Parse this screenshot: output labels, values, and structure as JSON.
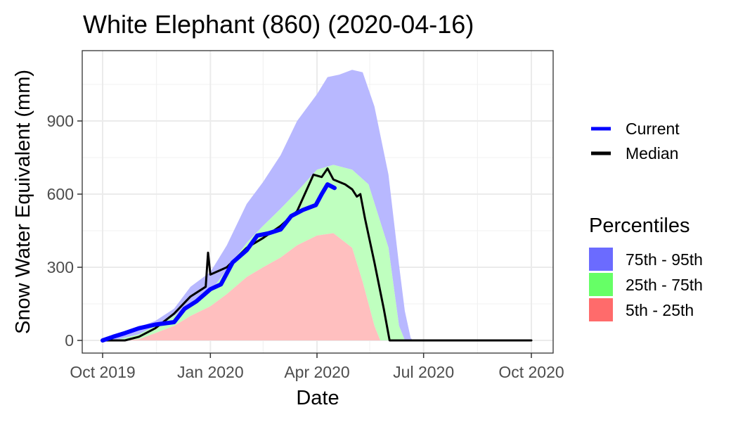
{
  "chart_data": {
    "type": "area",
    "title": "White Elephant (860) (2020-04-16)",
    "xlabel": "Date",
    "ylabel": "Snow Water Equivalent (mm)",
    "xlim": [
      "2019-10-01",
      "2020-10-01"
    ],
    "ylim": [
      -40,
      1180
    ],
    "x_ticks": [
      {
        "date": "2019-10-01",
        "label": "Oct 2019"
      },
      {
        "date": "2020-01-01",
        "label": "Jan 2020"
      },
      {
        "date": "2020-04-01",
        "label": "Apr 2020"
      },
      {
        "date": "2020-07-01",
        "label": "Jul 2020"
      },
      {
        "date": "2020-10-01",
        "label": "Oct 2020"
      }
    ],
    "y_ticks": [
      0,
      300,
      600,
      900
    ],
    "grid": true,
    "legend_position": "right",
    "lines_legend": [
      {
        "name": "Current",
        "color": "#0000ff"
      },
      {
        "name": "Median",
        "color": "#000000"
      }
    ],
    "percentile_legend_title": "Percentiles",
    "bands": [
      {
        "name": "75th - 95th",
        "color": "#6b6bff",
        "fill": "#b8b8ff",
        "upper": [
          [
            "2019-10-01",
            0
          ],
          [
            "2019-10-15",
            25
          ],
          [
            "2019-11-01",
            55
          ],
          [
            "2019-11-15",
            80
          ],
          [
            "2019-12-01",
            130
          ],
          [
            "2019-12-15",
            220
          ],
          [
            "2020-01-01",
            280
          ],
          [
            "2020-01-15",
            390
          ],
          [
            "2020-02-01",
            560
          ],
          [
            "2020-02-15",
            650
          ],
          [
            "2020-03-01",
            760
          ],
          [
            "2020-03-15",
            900
          ],
          [
            "2020-04-01",
            1010
          ],
          [
            "2020-04-10",
            1080
          ],
          [
            "2020-04-20",
            1090
          ],
          [
            "2020-05-01",
            1110
          ],
          [
            "2020-05-10",
            1100
          ],
          [
            "2020-05-20",
            960
          ],
          [
            "2020-06-01",
            680
          ],
          [
            "2020-06-10",
            310
          ],
          [
            "2020-06-15",
            120
          ],
          [
            "2020-06-20",
            10
          ],
          [
            "2020-06-22",
            0
          ]
        ],
        "lower": [
          [
            "2019-10-01",
            0
          ],
          [
            "2019-10-15",
            5
          ],
          [
            "2019-11-01",
            25
          ],
          [
            "2019-11-15",
            60
          ],
          [
            "2019-12-01",
            100
          ],
          [
            "2019-12-15",
            150
          ],
          [
            "2020-01-01",
            200
          ],
          [
            "2020-01-15",
            290
          ],
          [
            "2020-02-01",
            400
          ],
          [
            "2020-02-15",
            470
          ],
          [
            "2020-03-01",
            540
          ],
          [
            "2020-03-15",
            610
          ],
          [
            "2020-04-01",
            700
          ],
          [
            "2020-04-15",
            720
          ],
          [
            "2020-05-01",
            700
          ],
          [
            "2020-05-15",
            640
          ],
          [
            "2020-06-01",
            380
          ],
          [
            "2020-06-10",
            60
          ],
          [
            "2020-06-15",
            0
          ],
          [
            "2020-06-22",
            0
          ]
        ]
      },
      {
        "name": "25th - 75th",
        "color": "#66ff66",
        "fill": "#bfffbf",
        "upper": [
          [
            "2019-10-01",
            0
          ],
          [
            "2019-10-15",
            5
          ],
          [
            "2019-11-01",
            25
          ],
          [
            "2019-11-15",
            60
          ],
          [
            "2019-12-01",
            100
          ],
          [
            "2019-12-15",
            150
          ],
          [
            "2020-01-01",
            200
          ],
          [
            "2020-01-15",
            290
          ],
          [
            "2020-02-01",
            400
          ],
          [
            "2020-02-15",
            470
          ],
          [
            "2020-03-01",
            540
          ],
          [
            "2020-03-15",
            610
          ],
          [
            "2020-04-01",
            700
          ],
          [
            "2020-04-15",
            720
          ],
          [
            "2020-05-01",
            700
          ],
          [
            "2020-05-15",
            640
          ],
          [
            "2020-06-01",
            380
          ],
          [
            "2020-06-10",
            60
          ],
          [
            "2020-06-15",
            0
          ]
        ],
        "lower": [
          [
            "2019-10-01",
            0
          ],
          [
            "2019-10-20",
            0
          ],
          [
            "2019-11-01",
            5
          ],
          [
            "2019-11-15",
            30
          ],
          [
            "2019-12-01",
            60
          ],
          [
            "2019-12-15",
            100
          ],
          [
            "2020-01-01",
            140
          ],
          [
            "2020-01-15",
            190
          ],
          [
            "2020-02-01",
            260
          ],
          [
            "2020-02-15",
            300
          ],
          [
            "2020-03-01",
            340
          ],
          [
            "2020-03-15",
            390
          ],
          [
            "2020-04-01",
            430
          ],
          [
            "2020-04-15",
            440
          ],
          [
            "2020-05-01",
            380
          ],
          [
            "2020-05-10",
            240
          ],
          [
            "2020-05-20",
            60
          ],
          [
            "2020-05-25",
            0
          ],
          [
            "2020-06-15",
            0
          ]
        ]
      },
      {
        "name": "5th - 25th",
        "color": "#ff6b6b",
        "fill": "#ffbfbf",
        "upper": [
          [
            "2019-10-01",
            0
          ],
          [
            "2019-10-20",
            0
          ],
          [
            "2019-11-01",
            5
          ],
          [
            "2019-11-15",
            30
          ],
          [
            "2019-12-01",
            60
          ],
          [
            "2019-12-15",
            100
          ],
          [
            "2020-01-01",
            140
          ],
          [
            "2020-01-15",
            190
          ],
          [
            "2020-02-01",
            260
          ],
          [
            "2020-02-15",
            300
          ],
          [
            "2020-03-01",
            340
          ],
          [
            "2020-03-15",
            390
          ],
          [
            "2020-04-01",
            430
          ],
          [
            "2020-04-15",
            440
          ],
          [
            "2020-05-01",
            380
          ],
          [
            "2020-05-10",
            240
          ],
          [
            "2020-05-20",
            60
          ],
          [
            "2020-05-25",
            0
          ]
        ],
        "lower": [
          [
            "2019-10-01",
            0
          ],
          [
            "2020-05-25",
            0
          ]
        ]
      }
    ],
    "series": [
      {
        "name": "Median",
        "color": "#000000",
        "points": [
          [
            "2019-10-01",
            0
          ],
          [
            "2019-10-10",
            0
          ],
          [
            "2019-10-20",
            0
          ],
          [
            "2019-11-01",
            15
          ],
          [
            "2019-11-15",
            50
          ],
          [
            "2019-12-01",
            110
          ],
          [
            "2019-12-15",
            180
          ],
          [
            "2019-12-28",
            220
          ],
          [
            "2019-12-30",
            360
          ],
          [
            "2020-01-01",
            270
          ],
          [
            "2020-01-15",
            300
          ],
          [
            "2020-02-01",
            380
          ],
          [
            "2020-02-15",
            420
          ],
          [
            "2020-03-01",
            470
          ],
          [
            "2020-03-15",
            530
          ],
          [
            "2020-03-29",
            680
          ],
          [
            "2020-04-05",
            670
          ],
          [
            "2020-04-10",
            705
          ],
          [
            "2020-04-15",
            660
          ],
          [
            "2020-04-25",
            640
          ],
          [
            "2020-05-01",
            620
          ],
          [
            "2020-05-05",
            590
          ],
          [
            "2020-05-08",
            600
          ],
          [
            "2020-05-12",
            500
          ],
          [
            "2020-05-20",
            320
          ],
          [
            "2020-05-28",
            130
          ],
          [
            "2020-06-02",
            0
          ],
          [
            "2020-10-01",
            0
          ]
        ]
      },
      {
        "name": "Current",
        "color": "#0000ff",
        "points": [
          [
            "2019-10-01",
            0
          ],
          [
            "2019-10-10",
            15
          ],
          [
            "2019-10-20",
            30
          ],
          [
            "2019-11-01",
            50
          ],
          [
            "2019-11-15",
            65
          ],
          [
            "2019-12-01",
            75
          ],
          [
            "2019-12-10",
            130
          ],
          [
            "2019-12-20",
            160
          ],
          [
            "2020-01-01",
            210
          ],
          [
            "2020-01-10",
            230
          ],
          [
            "2020-01-20",
            320
          ],
          [
            "2020-02-01",
            370
          ],
          [
            "2020-02-10",
            430
          ],
          [
            "2020-02-20",
            440
          ],
          [
            "2020-03-01",
            455
          ],
          [
            "2020-03-10",
            510
          ],
          [
            "2020-03-20",
            535
          ],
          [
            "2020-03-31",
            555
          ],
          [
            "2020-04-05",
            600
          ],
          [
            "2020-04-10",
            640
          ],
          [
            "2020-04-16",
            625
          ]
        ]
      }
    ]
  }
}
